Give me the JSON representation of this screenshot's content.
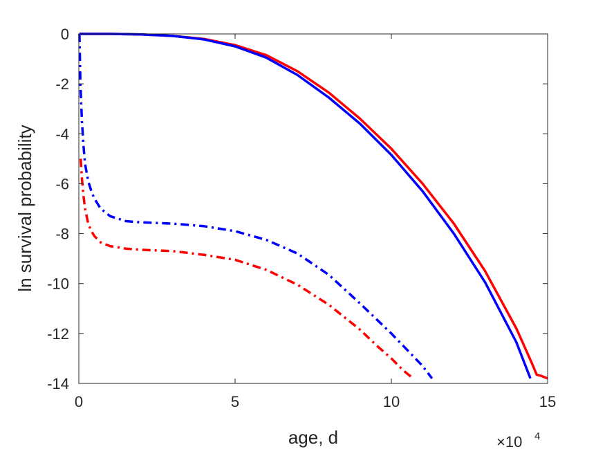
{
  "chart_data": {
    "type": "line",
    "xlabel": "age, d",
    "ylabel": "ln survival probability",
    "x_exponent_label": "×10",
    "x_exponent_power": "4",
    "xlim": [
      0,
      150000
    ],
    "ylim": [
      -14,
      0
    ],
    "x_ticks": [
      0,
      50000,
      100000,
      150000
    ],
    "x_tick_labels": [
      "0",
      "5",
      "10",
      "15"
    ],
    "y_ticks": [
      0,
      -2,
      -4,
      -6,
      -8,
      -10,
      -12,
      -14
    ],
    "y_tick_labels": [
      "0",
      "-2",
      "-4",
      "-6",
      "-8",
      "-10",
      "-12",
      "-14"
    ],
    "grid": false,
    "legend": "none",
    "series": [
      {
        "color": "#ff0000",
        "style": "solid",
        "x": [
          200,
          10000,
          20000,
          30000,
          40000,
          50000,
          60000,
          70000,
          80000,
          90000,
          100000,
          110000,
          120000,
          130000,
          140000,
          145000,
          146500,
          148000,
          150000
        ],
        "y": [
          0,
          0,
          -0.02,
          -0.08,
          -0.2,
          -0.45,
          -0.85,
          -1.5,
          -2.35,
          -3.4,
          -4.6,
          -6.0,
          -7.6,
          -9.5,
          -11.8,
          -13.2,
          -13.65,
          -13.7,
          -13.8
        ]
      },
      {
        "color": "#0000ff",
        "style": "solid",
        "x": [
          200,
          10000,
          20000,
          30000,
          40000,
          50000,
          60000,
          70000,
          80000,
          90000,
          100000,
          110000,
          120000,
          130000,
          140000,
          144500
        ],
        "y": [
          0,
          0,
          -0.02,
          -0.08,
          -0.22,
          -0.5,
          -0.95,
          -1.65,
          -2.55,
          -3.6,
          -4.85,
          -6.3,
          -8.0,
          -9.95,
          -12.35,
          -13.8
        ]
      },
      {
        "color": "#0000ff",
        "style": "dashdot",
        "x": [
          200,
          500,
          1000,
          1500,
          2000,
          3000,
          4000,
          5000,
          7000,
          10000,
          15000,
          20000,
          30000,
          40000,
          50000,
          60000,
          70000,
          80000,
          90000,
          100000,
          105000,
          110000,
          113000
        ],
        "y": [
          0,
          -2.0,
          -3.5,
          -4.5,
          -5.2,
          -5.9,
          -6.3,
          -6.6,
          -7.0,
          -7.3,
          -7.5,
          -7.55,
          -7.6,
          -7.7,
          -7.9,
          -8.25,
          -8.8,
          -9.65,
          -10.8,
          -12.0,
          -12.65,
          -13.3,
          -13.8
        ]
      },
      {
        "color": "#ff0000",
        "style": "dashdot",
        "x": [
          600,
          1000,
          1500,
          2000,
          3000,
          4000,
          5000,
          7000,
          10000,
          15000,
          20000,
          30000,
          40000,
          50000,
          60000,
          70000,
          80000,
          90000,
          95000,
          100000,
          104000,
          107000
        ],
        "y": [
          -5.0,
          -5.8,
          -6.5,
          -7.0,
          -7.6,
          -7.9,
          -8.1,
          -8.35,
          -8.5,
          -8.6,
          -8.65,
          -8.7,
          -8.85,
          -9.05,
          -9.45,
          -10.05,
          -10.85,
          -11.85,
          -12.45,
          -13.0,
          -13.5,
          -13.8
        ]
      }
    ]
  }
}
